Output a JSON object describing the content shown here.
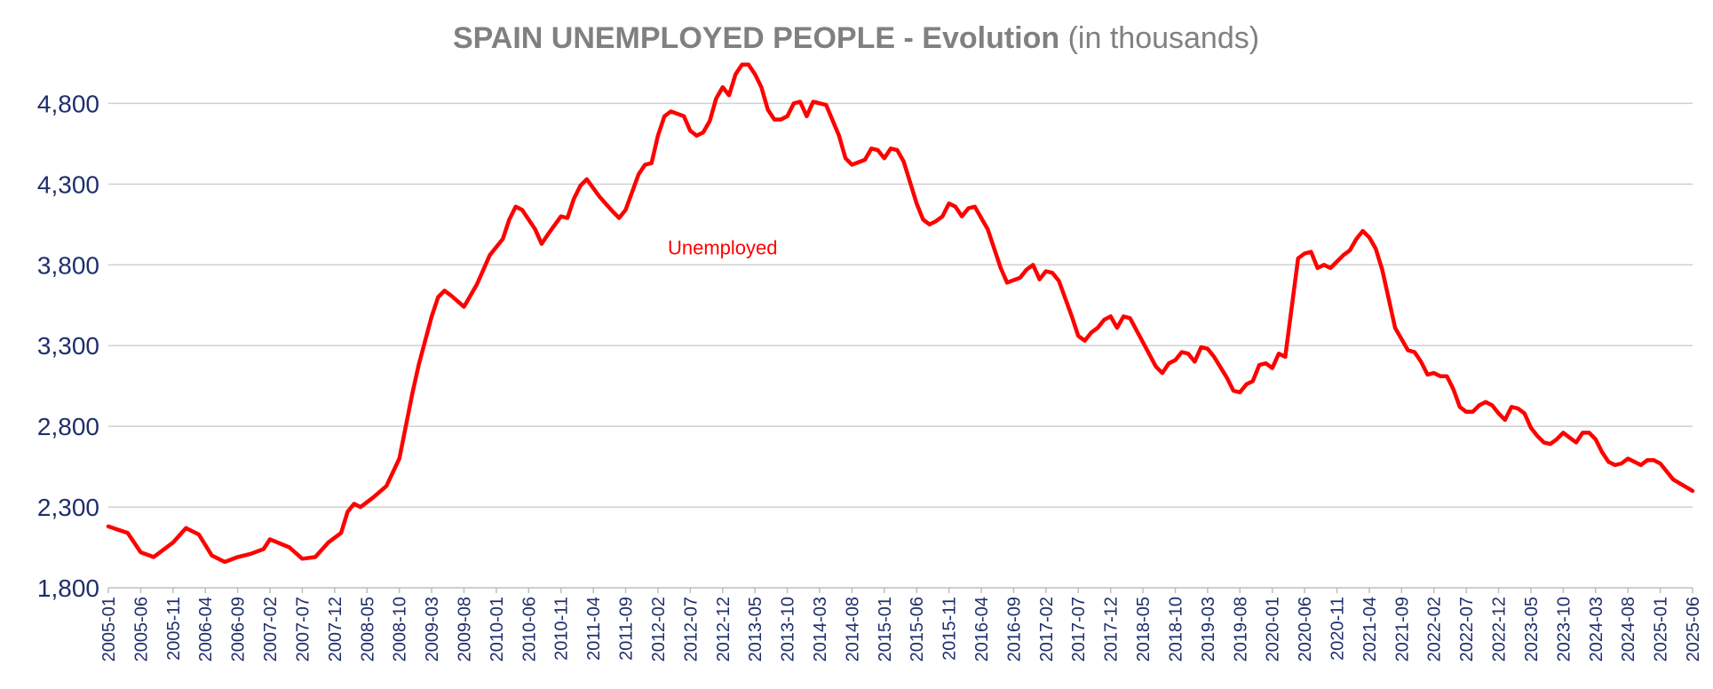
{
  "chart_data": {
    "type": "line",
    "title_bold": "SPAIN UNEMPLOYED PEOPLE  - Evolution",
    "title_rest": " (in thousands)",
    "xlabel": "",
    "ylabel": "",
    "ylim": [
      1800,
      5000
    ],
    "yticks": [
      1800,
      2300,
      2800,
      3300,
      3800,
      4300,
      4800
    ],
    "ytick_labels": [
      "1,800",
      "2,300",
      "2,800",
      "3,300",
      "3,800",
      "4,300",
      "4,800"
    ],
    "grid": true,
    "legend": "none",
    "x_start": "2005-01",
    "x_end": "2025-06",
    "x_step_months": 5,
    "x_tick_labels": [
      "2005-01",
      "2005-06",
      "2005-11",
      "2006-04",
      "2006-09",
      "2007-02",
      "2007-07",
      "2007-12",
      "2008-05",
      "2008-10",
      "2009-03",
      "2009-08",
      "2010-01",
      "2010-06",
      "2010-11",
      "2011-04",
      "2011-09",
      "2012-02",
      "2012-07",
      "2012-12",
      "2013-05",
      "2013-10",
      "2014-03",
      "2014-08",
      "2015-01",
      "2015-06",
      "2015-11",
      "2016-04",
      "2016-09",
      "2017-02",
      "2017-07",
      "2017-12",
      "2018-05",
      "2018-10",
      "2019-03",
      "2019-08",
      "2020-01",
      "2020-06",
      "2020-11",
      "2021-04",
      "2021-09",
      "2022-02",
      "2022-07",
      "2022-12",
      "2023-05",
      "2023-10",
      "2024-03",
      "2024-08",
      "2025-01",
      "2025-06"
    ],
    "series": [
      {
        "name": "Unemployed",
        "color": "#ff0000",
        "points": [
          [
            "2005-01",
            2180
          ],
          [
            "2005-04",
            2140
          ],
          [
            "2005-06",
            2020
          ],
          [
            "2005-08",
            1990
          ],
          [
            "2005-11",
            2080
          ],
          [
            "2006-01",
            2170
          ],
          [
            "2006-03",
            2130
          ],
          [
            "2006-05",
            2000
          ],
          [
            "2006-07",
            1960
          ],
          [
            "2006-09",
            1990
          ],
          [
            "2006-11",
            2010
          ],
          [
            "2007-01",
            2040
          ],
          [
            "2007-02",
            2100
          ],
          [
            "2007-05",
            2050
          ],
          [
            "2007-07",
            1980
          ],
          [
            "2007-09",
            1990
          ],
          [
            "2007-11",
            2080
          ],
          [
            "2008-01",
            2140
          ],
          [
            "2008-02",
            2270
          ],
          [
            "2008-03",
            2320
          ],
          [
            "2008-04",
            2300
          ],
          [
            "2008-06",
            2360
          ],
          [
            "2008-08",
            2430
          ],
          [
            "2008-10",
            2600
          ],
          [
            "2008-12",
            3000
          ],
          [
            "2009-01",
            3180
          ],
          [
            "2009-03",
            3480
          ],
          [
            "2009-04",
            3600
          ],
          [
            "2009-05",
            3640
          ],
          [
            "2009-06",
            3610
          ],
          [
            "2009-08",
            3540
          ],
          [
            "2009-10",
            3680
          ],
          [
            "2009-12",
            3860
          ],
          [
            "2010-02",
            3960
          ],
          [
            "2010-03",
            4080
          ],
          [
            "2010-04",
            4160
          ],
          [
            "2010-05",
            4140
          ],
          [
            "2010-07",
            4020
          ],
          [
            "2010-08",
            3930
          ],
          [
            "2010-09",
            3990
          ],
          [
            "2010-11",
            4100
          ],
          [
            "2010-12",
            4090
          ],
          [
            "2011-01",
            4210
          ],
          [
            "2011-02",
            4290
          ],
          [
            "2011-03",
            4330
          ],
          [
            "2011-05",
            4220
          ],
          [
            "2011-07",
            4130
          ],
          [
            "2011-08",
            4090
          ],
          [
            "2011-09",
            4140
          ],
          [
            "2011-11",
            4360
          ],
          [
            "2011-12",
            4420
          ],
          [
            "2012-01",
            4430
          ],
          [
            "2012-02",
            4600
          ],
          [
            "2012-03",
            4720
          ],
          [
            "2012-04",
            4750
          ],
          [
            "2012-06",
            4720
          ],
          [
            "2012-07",
            4630
          ],
          [
            "2012-08",
            4600
          ],
          [
            "2012-09",
            4620
          ],
          [
            "2012-10",
            4690
          ],
          [
            "2012-11",
            4830
          ],
          [
            "2012-12",
            4900
          ],
          [
            "2013-01",
            4850
          ],
          [
            "2013-02",
            4980
          ],
          [
            "2013-03",
            5040
          ],
          [
            "2013-04",
            5040
          ],
          [
            "2013-05",
            4980
          ],
          [
            "2013-06",
            4900
          ],
          [
            "2013-07",
            4760
          ],
          [
            "2013-08",
            4700
          ],
          [
            "2013-09",
            4700
          ],
          [
            "2013-10",
            4720
          ],
          [
            "2013-11",
            4800
          ],
          [
            "2013-12",
            4810
          ],
          [
            "2014-01",
            4720
          ],
          [
            "2014-02",
            4810
          ],
          [
            "2014-04",
            4790
          ],
          [
            "2014-06",
            4600
          ],
          [
            "2014-07",
            4460
          ],
          [
            "2014-08",
            4420
          ],
          [
            "2014-10",
            4450
          ],
          [
            "2014-11",
            4520
          ],
          [
            "2014-12",
            4510
          ],
          [
            "2015-01",
            4460
          ],
          [
            "2015-02",
            4520
          ],
          [
            "2015-03",
            4510
          ],
          [
            "2015-04",
            4440
          ],
          [
            "2015-06",
            4180
          ],
          [
            "2015-07",
            4080
          ],
          [
            "2015-08",
            4050
          ],
          [
            "2015-09",
            4070
          ],
          [
            "2015-10",
            4100
          ],
          [
            "2015-11",
            4180
          ],
          [
            "2015-12",
            4160
          ],
          [
            "2016-01",
            4100
          ],
          [
            "2016-02",
            4150
          ],
          [
            "2016-03",
            4160
          ],
          [
            "2016-05",
            4020
          ],
          [
            "2016-07",
            3780
          ],
          [
            "2016-08",
            3690
          ],
          [
            "2016-10",
            3720
          ],
          [
            "2016-11",
            3770
          ],
          [
            "2016-12",
            3800
          ],
          [
            "2017-01",
            3710
          ],
          [
            "2017-02",
            3760
          ],
          [
            "2017-03",
            3750
          ],
          [
            "2017-04",
            3700
          ],
          [
            "2017-06",
            3480
          ],
          [
            "2017-07",
            3360
          ],
          [
            "2017-08",
            3330
          ],
          [
            "2017-09",
            3380
          ],
          [
            "2017-10",
            3410
          ],
          [
            "2017-11",
            3460
          ],
          [
            "2017-12",
            3480
          ],
          [
            "2018-01",
            3410
          ],
          [
            "2018-02",
            3480
          ],
          [
            "2018-03",
            3470
          ],
          [
            "2018-05",
            3320
          ],
          [
            "2018-07",
            3170
          ],
          [
            "2018-08",
            3130
          ],
          [
            "2018-09",
            3190
          ],
          [
            "2018-10",
            3210
          ],
          [
            "2018-11",
            3260
          ],
          [
            "2018-12",
            3250
          ],
          [
            "2019-01",
            3200
          ],
          [
            "2019-02",
            3290
          ],
          [
            "2019-03",
            3280
          ],
          [
            "2019-04",
            3230
          ],
          [
            "2019-06",
            3100
          ],
          [
            "2019-07",
            3020
          ],
          [
            "2019-08",
            3010
          ],
          [
            "2019-09",
            3060
          ],
          [
            "2019-10",
            3080
          ],
          [
            "2019-11",
            3180
          ],
          [
            "2019-12",
            3190
          ],
          [
            "2020-01",
            3160
          ],
          [
            "2020-02",
            3250
          ],
          [
            "2020-03",
            3230
          ],
          [
            "2020-05",
            3840
          ],
          [
            "2020-06",
            3870
          ],
          [
            "2020-07",
            3880
          ],
          [
            "2020-08",
            3780
          ],
          [
            "2020-09",
            3800
          ],
          [
            "2020-10",
            3780
          ],
          [
            "2020-11",
            3820
          ],
          [
            "2020-12",
            3860
          ],
          [
            "2021-01",
            3890
          ],
          [
            "2021-02",
            3960
          ],
          [
            "2021-03",
            4010
          ],
          [
            "2021-04",
            3970
          ],
          [
            "2021-05",
            3900
          ],
          [
            "2021-06",
            3770
          ],
          [
            "2021-07",
            3590
          ],
          [
            "2021-08",
            3410
          ],
          [
            "2021-10",
            3270
          ],
          [
            "2021-11",
            3260
          ],
          [
            "2021-12",
            3200
          ],
          [
            "2022-01",
            3120
          ],
          [
            "2022-02",
            3130
          ],
          [
            "2022-03",
            3110
          ],
          [
            "2022-04",
            3110
          ],
          [
            "2022-05",
            3030
          ],
          [
            "2022-06",
            2920
          ],
          [
            "2022-07",
            2890
          ],
          [
            "2022-08",
            2890
          ],
          [
            "2022-09",
            2930
          ],
          [
            "2022-10",
            2950
          ],
          [
            "2022-11",
            2930
          ],
          [
            "2022-12",
            2880
          ],
          [
            "2023-01",
            2840
          ],
          [
            "2023-02",
            2920
          ],
          [
            "2023-03",
            2910
          ],
          [
            "2023-04",
            2880
          ],
          [
            "2023-05",
            2790
          ],
          [
            "2023-06",
            2740
          ],
          [
            "2023-07",
            2700
          ],
          [
            "2023-08",
            2690
          ],
          [
            "2023-09",
            2720
          ],
          [
            "2023-10",
            2760
          ],
          [
            "2023-11",
            2730
          ],
          [
            "2023-12",
            2700
          ],
          [
            "2024-01",
            2760
          ],
          [
            "2024-02",
            2760
          ],
          [
            "2024-03",
            2720
          ],
          [
            "2024-04",
            2640
          ],
          [
            "2024-05",
            2580
          ],
          [
            "2024-06",
            2560
          ],
          [
            "2024-07",
            2570
          ],
          [
            "2024-08",
            2600
          ],
          [
            "2024-09",
            2580
          ],
          [
            "2024-10",
            2560
          ],
          [
            "2024-11",
            2590
          ],
          [
            "2024-12",
            2590
          ],
          [
            "2025-01",
            2570
          ],
          [
            "2025-03",
            2470
          ],
          [
            "2025-06",
            2400
          ]
        ]
      }
    ]
  }
}
